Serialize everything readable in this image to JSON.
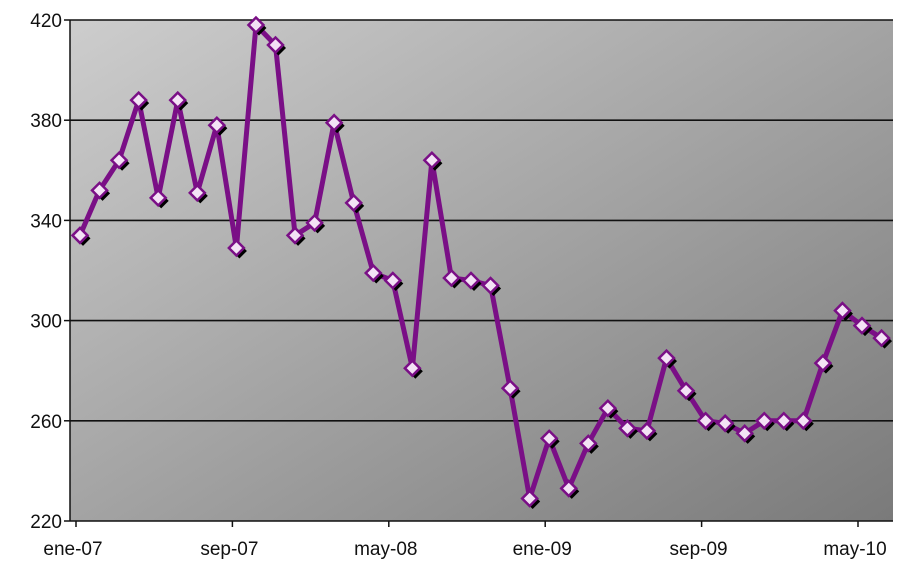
{
  "chart_data": {
    "type": "line",
    "title": "",
    "xlabel": "",
    "ylabel": "",
    "ylim": [
      220,
      420
    ],
    "yticks": [
      "220",
      "260",
      "300",
      "340",
      "380",
      "420"
    ],
    "xticks": [
      "ene-07",
      "sep-07",
      "may-08",
      "ene-09",
      "sep-09",
      "may-10"
    ],
    "xtick_positions": [
      "2007-01",
      "2007-09",
      "2008-05",
      "2009-01",
      "2009-09",
      "2010-05"
    ],
    "grid": true,
    "legend": "none",
    "colors": {
      "line": "#7a0f86",
      "marker_fill": "#f3e2f5",
      "plot_bg_light": "#c8c8c8",
      "plot_bg_dark": "#7c7c7c",
      "gridline": "#111111"
    },
    "series": [
      {
        "x": [
          "2007-01",
          "2007-02",
          "2007-03",
          "2007-04",
          "2007-05",
          "2007-06",
          "2007-07",
          "2007-08",
          "2007-09",
          "2007-10",
          "2007-11",
          "2007-12",
          "2008-01",
          "2008-02",
          "2008-03",
          "2008-04",
          "2008-05",
          "2008-06",
          "2008-07",
          "2008-08",
          "2008-09",
          "2008-10",
          "2008-11",
          "2008-12",
          "2009-01",
          "2009-02",
          "2009-03",
          "2009-04",
          "2009-05",
          "2009-06",
          "2009-07",
          "2009-08",
          "2009-09",
          "2009-10",
          "2009-11",
          "2009-12",
          "2010-01",
          "2010-02",
          "2010-03",
          "2010-04",
          "2010-05",
          "2010-06",
          "2010-07"
        ],
        "values": [
          334,
          352,
          364,
          388,
          349,
          388,
          351,
          378,
          329,
          418,
          410,
          334,
          339,
          379,
          347,
          319,
          316,
          281,
          364,
          317,
          316,
          314,
          273,
          229,
          253,
          233,
          251,
          265,
          257,
          256,
          285,
          272,
          260,
          259,
          255,
          260,
          260,
          260,
          283,
          304,
          298,
          293,
          null
        ]
      }
    ]
  }
}
